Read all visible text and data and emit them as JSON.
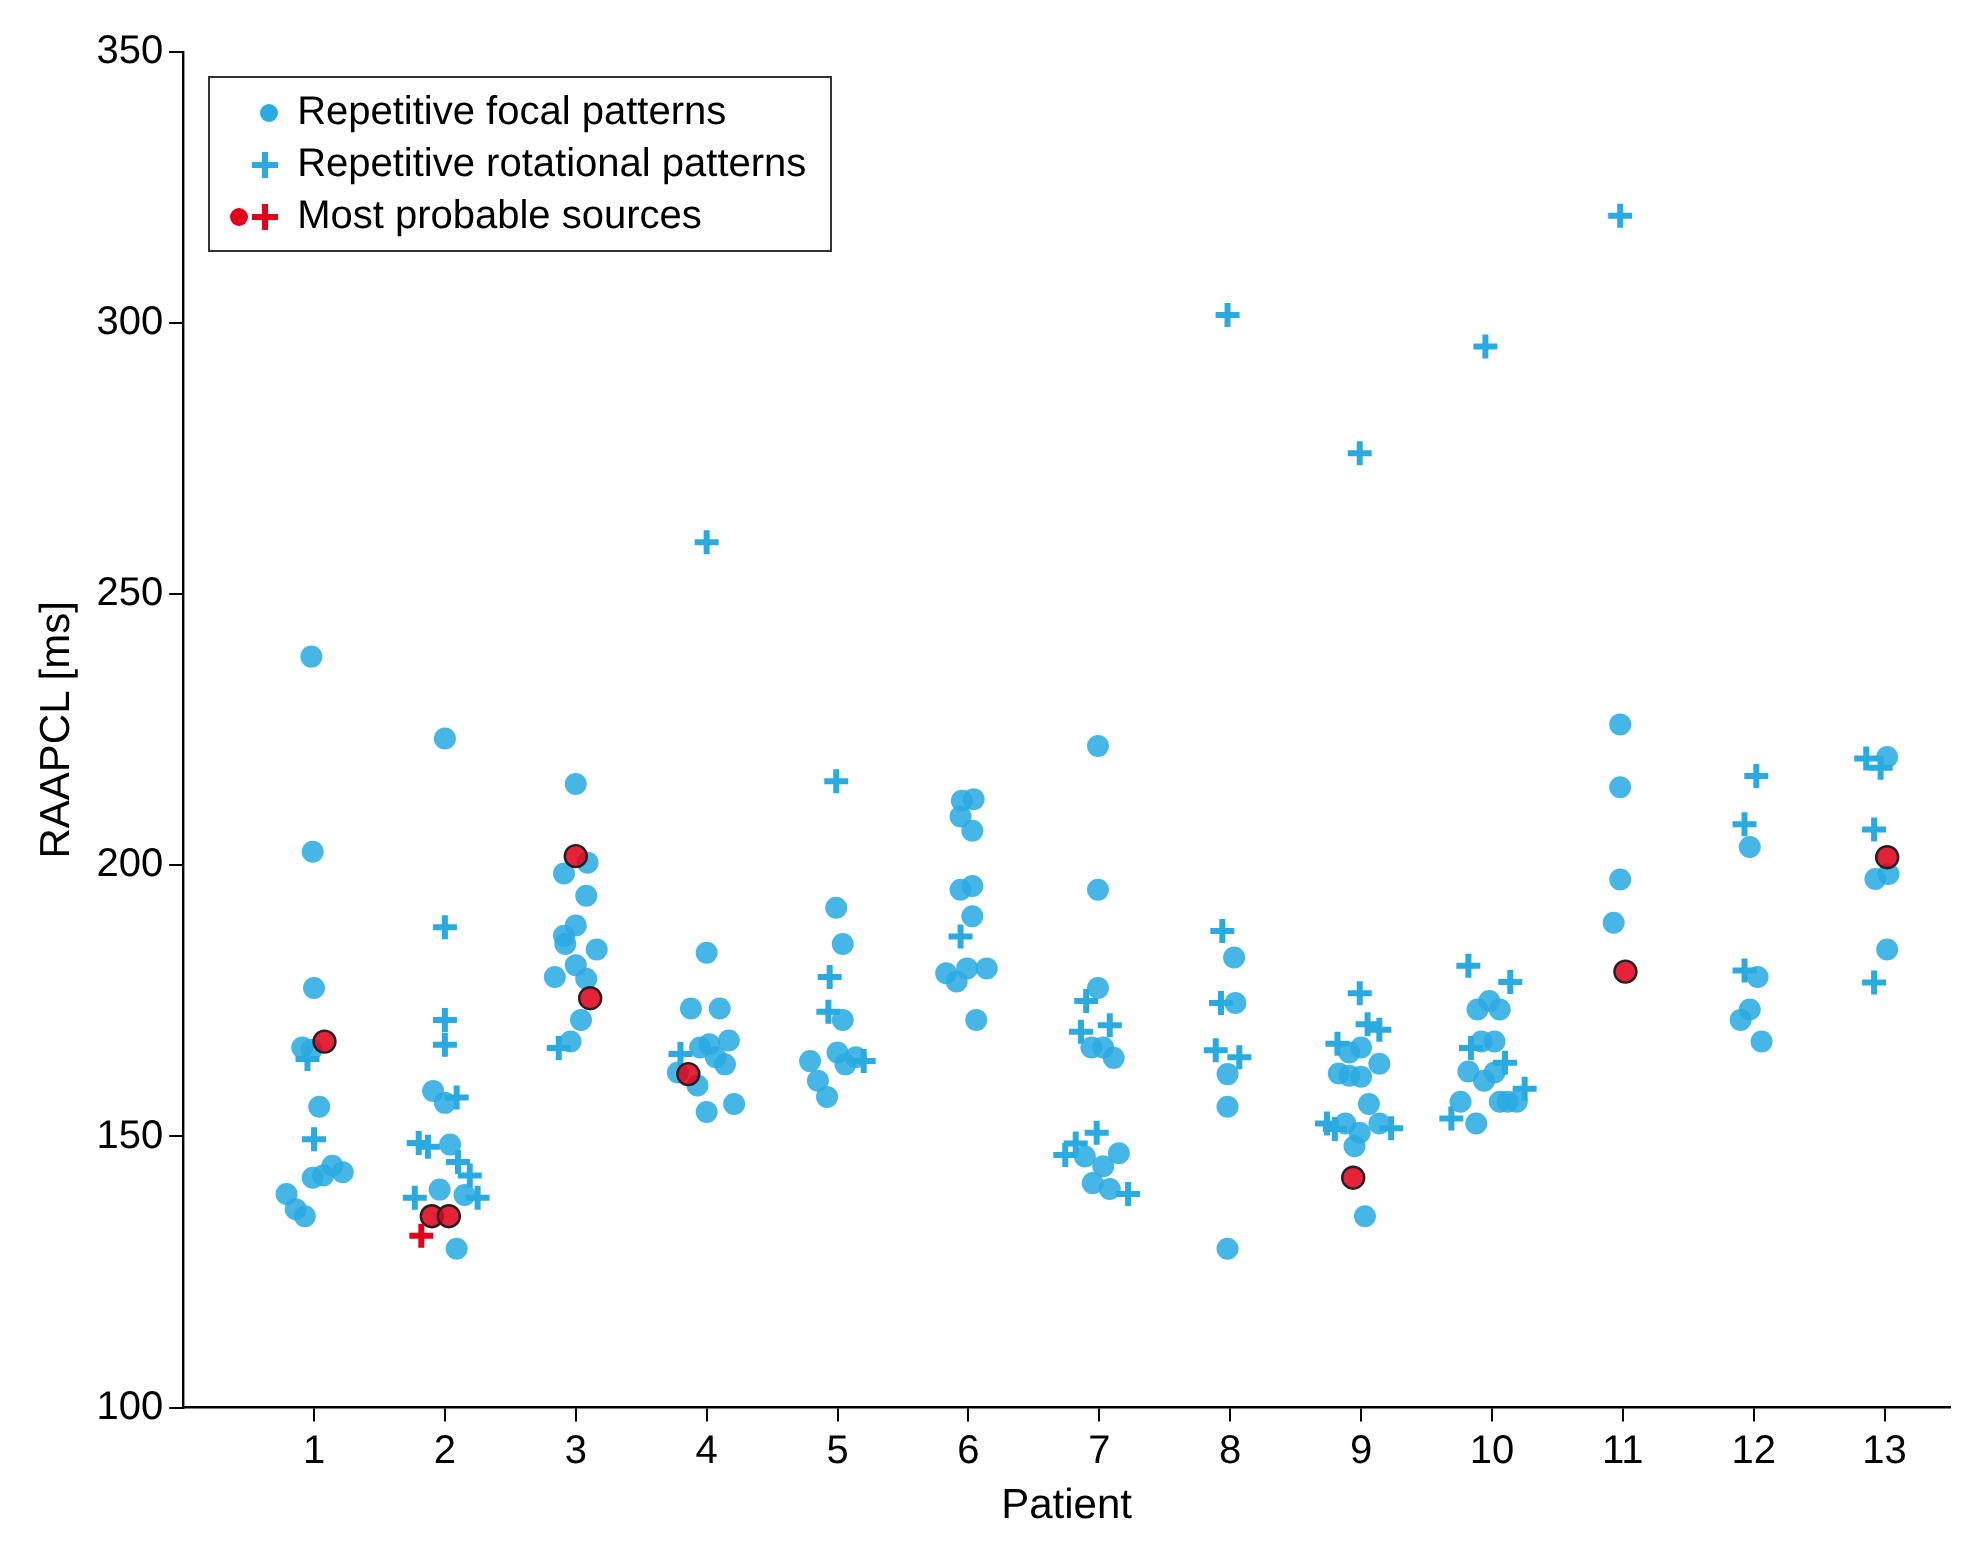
{
  "chart_data": {
    "type": "scatter",
    "xlabel": "Patient",
    "ylabel": "RAAPCL [ms]",
    "xlim": [
      0,
      13.5
    ],
    "xticks": [
      1,
      2,
      3,
      4,
      5,
      6,
      7,
      8,
      9,
      10,
      11,
      12,
      13
    ],
    "ylim": [
      100,
      350
    ],
    "yticks": [
      100,
      150,
      200,
      250,
      300,
      350
    ],
    "grid": false,
    "legend": "top left",
    "series": [
      {
        "name": "Repetitive focal patterns",
        "color": "#29abe2",
        "marker": "circle",
        "x": [
          0.98,
          0.99,
          1.0,
          0.91,
          0.98,
          1.04,
          0.99,
          1.07,
          1.14,
          1.22,
          0.79,
          0.86,
          0.93,
          2.0,
          1.91,
          2.0,
          2.04,
          2.15,
          1.96,
          2.09,
          3.0,
          3.09,
          2.91,
          3.08,
          3.0,
          2.91,
          2.92,
          3.16,
          3.0,
          2.84,
          3.08,
          3.04,
          2.96,
          4.0,
          3.88,
          4.1,
          3.95,
          4.02,
          4.17,
          4.07,
          4.14,
          3.78,
          3.93,
          4.0,
          4.21,
          4.99,
          5.04,
          5.04,
          5.0,
          4.79,
          5.14,
          5.06,
          4.85,
          4.92,
          5.95,
          6.04,
          5.94,
          6.03,
          5.94,
          6.03,
          6.03,
          5.83,
          5.91,
          5.99,
          6.14,
          6.06,
          6.99,
          6.99,
          6.99,
          6.94,
          7.03,
          7.11,
          6.89,
          7.15,
          7.03,
          6.95,
          7.08,
          8.03,
          8.04,
          7.98,
          7.98,
          7.98,
          8.91,
          9.0,
          9.14,
          8.83,
          8.91,
          9.0,
          9.06,
          8.88,
          8.99,
          9.14,
          8.95,
          9.03,
          9.89,
          9.98,
          10.06,
          9.92,
          10.02,
          9.82,
          9.94,
          10.02,
          10.06,
          10.12,
          10.19,
          9.76,
          9.88,
          10.98,
          10.98,
          10.98,
          10.93,
          11.97,
          12.03,
          11.97,
          11.9,
          12.06,
          13.02,
          12.93,
          13.03,
          13.02
        ],
        "values": [
          238.5,
          202.5,
          177.4,
          166.4,
          166,
          155.5,
          142.4,
          142.8,
          144.6,
          143.4,
          139.4,
          136.6,
          135.3,
          223.4,
          158.4,
          156.2,
          148.5,
          139.2,
          140.2,
          129.3,
          215,
          200.5,
          198.5,
          194.4,
          188.9,
          187,
          185.5,
          184.5,
          181.6,
          179.4,
          179.1,
          171.5,
          167.5,
          183.9,
          173.6,
          173.6,
          166.4,
          167,
          167.7,
          164.6,
          163.3,
          161.8,
          159.4,
          154.5,
          156,
          192.2,
          185.5,
          171.5,
          165.5,
          163.9,
          164.6,
          163.3,
          160.3,
          157.3,
          211.9,
          212.2,
          209,
          206.4,
          195.5,
          196.2,
          190.6,
          180.1,
          178.6,
          181,
          181,
          171.5,
          222,
          195.5,
          177.4,
          166.4,
          166.4,
          164.5,
          146.3,
          146.9,
          144.5,
          141.4,
          140.3,
          183,
          174.6,
          161.5,
          155.5,
          129.3,
          165.5,
          166.4,
          163.4,
          161.6,
          161.2,
          161,
          156,
          152.4,
          150.7,
          152.4,
          148.2,
          135.3,
          173.4,
          175,
          173.4,
          167.5,
          167.5,
          162,
          160.3,
          161.8,
          156.4,
          156.4,
          156.4,
          156.4,
          152.4,
          226,
          214.4,
          197.4,
          189.4,
          203.4,
          179.4,
          173.4,
          171.5,
          167.5,
          220,
          197.5,
          198.4,
          184.5
        ]
      },
      {
        "name": "Repetitive rotational patterns",
        "color": "#29abe2",
        "marker": "cross",
        "x": [
          0.95,
          1.0,
          2.0,
          2.0,
          2.0,
          2.09,
          1.8,
          1.87,
          2.1,
          2.19,
          2.25,
          1.77,
          2.87,
          4.0,
          3.8,
          4.99,
          4.94,
          4.93,
          5.2,
          5.94,
          6.9,
          6.86,
          7.08,
          6.98,
          6.82,
          6.74,
          7.22,
          7.98,
          7.94,
          7.93,
          7.89,
          8.07,
          8.99,
          8.99,
          9.05,
          9.14,
          8.82,
          8.74,
          8.8,
          9.23,
          9.95,
          9.82,
          10.14,
          9.84,
          10.1,
          10.25,
          9.69,
          10.98,
          12.02,
          11.93,
          11.93,
          12.86,
          12.97,
          12.92,
          12.92
        ],
        "values": [
          164.3,
          149.5,
          188.6,
          171.5,
          166.9,
          157.2,
          148.8,
          148.1,
          145.3,
          142.8,
          138.7,
          138.7,
          166.3,
          259.6,
          165.2,
          215.5,
          179.4,
          173,
          163.9,
          186.9,
          175,
          169.3,
          170.5,
          150.7,
          148.7,
          146.6,
          139.4,
          301.5,
          187.9,
          174.6,
          165.9,
          164.6,
          276,
          176.4,
          170.7,
          169.7,
          167.1,
          152.4,
          151.4,
          151.5,
          295.7,
          181.5,
          178.5,
          166.3,
          163.6,
          158.8,
          153.3,
          319.8,
          216.5,
          207.6,
          180.6,
          219.7,
          218,
          206.6,
          178.4
        ]
      },
      {
        "name": "Most probable sources",
        "color": "#e2001a",
        "marker": "circle",
        "x": [
          1.08,
          1.9,
          2.03,
          3.0,
          3.11,
          3.86,
          8.94,
          11.02,
          13.02
        ],
        "values": [
          167.5,
          135.3,
          135.3,
          201.7,
          175.5,
          161.5,
          142.4,
          180.4,
          201.5
        ]
      },
      {
        "color": "#e2001a",
        "marker": "cross",
        "x": [
          1.82
        ],
        "values": [
          131.7
        ]
      }
    ]
  }
}
